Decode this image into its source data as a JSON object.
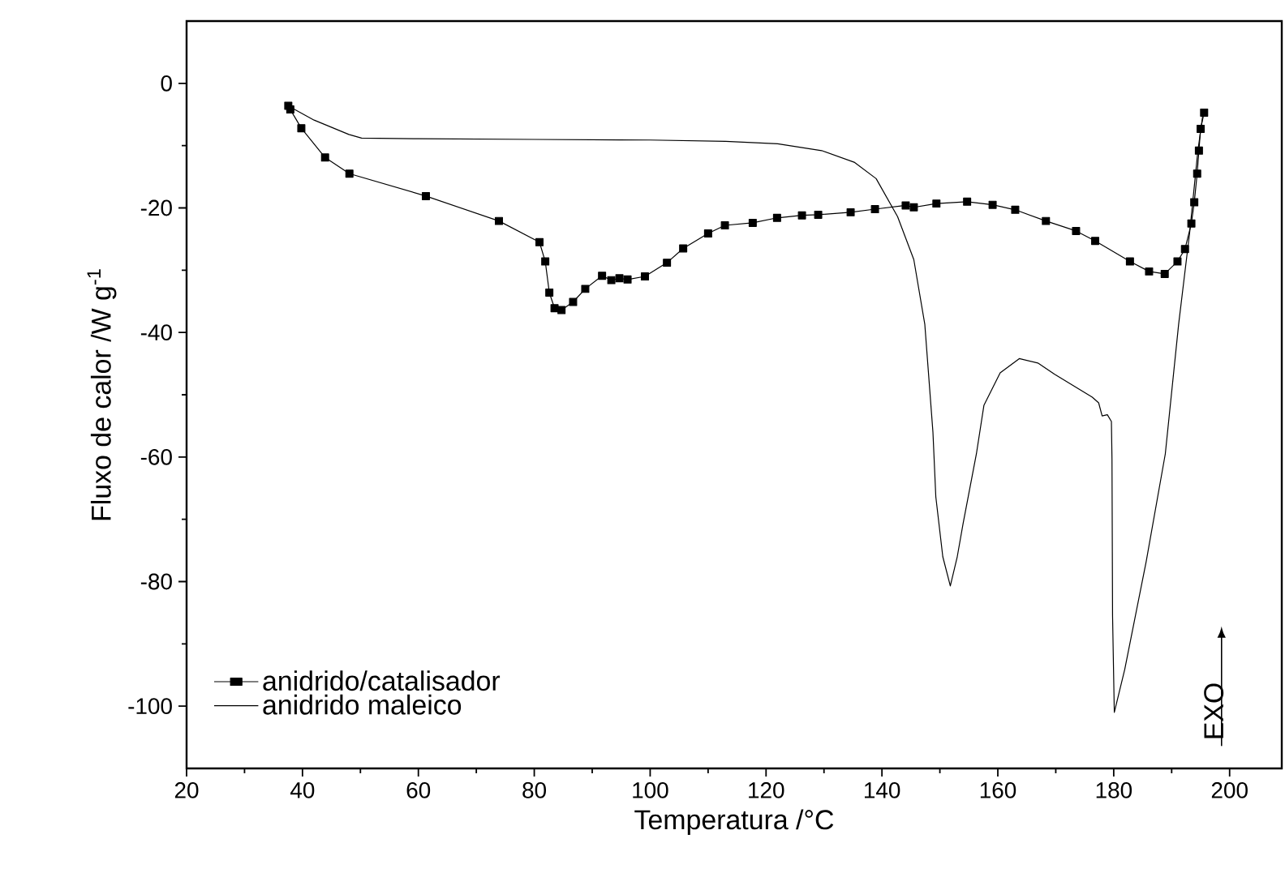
{
  "chart_data": {
    "type": "line",
    "xlabel": "Temperatura /°C",
    "ylabel": "Fluxo de calor /W g$^{-1}$",
    "xlim": [
      20,
      209
    ],
    "ylim": [
      -110,
      10
    ],
    "xticks": [
      20,
      40,
      60,
      80,
      100,
      120,
      140,
      160,
      180,
      200
    ],
    "yticks": [
      -100,
      -80,
      -60,
      -40,
      -20,
      0
    ],
    "legend": "bottom left",
    "annotations": [
      "EXO"
    ],
    "series": [
      {
        "name": "anidrido/catalisador",
        "color": "#000000",
        "marker": "square",
        "x": [
          37.55,
          37.9,
          39.8,
          43.9,
          48.1,
          61.3,
          73.9,
          80.9,
          81.9,
          82.6,
          83.5,
          84.7,
          86.7,
          88.8,
          91.7,
          93.3,
          94.7,
          96.1,
          99.1,
          102.9,
          105.7,
          110.0,
          112.9,
          117.7,
          121.9,
          126.2,
          129.0,
          134.6,
          138.8,
          144.1,
          145.5,
          149.4,
          154.7,
          159.1,
          163.0,
          168.3,
          173.5,
          176.8,
          182.8,
          186.1,
          188.8,
          191.0,
          192.3,
          193.4,
          193.9,
          194.4,
          194.7,
          195.0,
          195.3,
          195.6
        ],
        "values": [
          -3.6,
          -4.2,
          -7.2,
          -11.9,
          -14.5,
          -18.1,
          -22.1,
          -25.5,
          -28.6,
          -33.6,
          -36.1,
          -36.4,
          -35.1,
          -33.0,
          -30.9,
          -31.6,
          -31.3,
          -31.5,
          -31.0,
          -28.8,
          -26.5,
          -24.1,
          -22.8,
          -22.4,
          -21.6,
          -21.2,
          -21.1,
          -20.7,
          -20.2,
          -19.6,
          -19.9,
          -19.3,
          -19.0,
          -19.5,
          -20.3,
          -22.1,
          -23.7,
          -25.3,
          -28.6,
          -30.2,
          -30.6,
          -28.6,
          -26.6,
          -22.5,
          -19.1,
          -14.5,
          -10.8,
          -7.3,
          null,
          -4.7
        ]
      },
      {
        "name": "anidrido maleico",
        "color": "#000000",
        "marker": "none",
        "x": [
          37.5,
          42,
          48,
          50.2,
          60,
          80,
          100,
          113,
          122,
          129.6,
          135.3,
          139.0,
          142.7,
          145.5,
          147.4,
          148.8,
          149.3,
          150.5,
          151.8,
          153.0,
          154.0,
          156.3,
          157.6,
          160.4,
          163.7,
          166.9,
          169.8,
          176.3,
          177.4,
          178.0,
          178.9,
          179.6,
          179.7,
          179.8,
          180.1,
          181.9,
          185.6,
          188.9,
          191.2,
          193.1,
          194.5,
          195.4
        ],
        "values": [
          -3.6,
          -5.9,
          -8.2,
          -8.8,
          -8.9,
          -9.0,
          -9.1,
          -9.3,
          -9.7,
          -10.8,
          -12.7,
          -15.3,
          -21.4,
          -28.3,
          -38.7,
          -56.0,
          -66.4,
          -76.0,
          -80.7,
          -76.0,
          -70.7,
          -59.5,
          -51.7,
          -46.5,
          -44.2,
          -44.9,
          -46.7,
          -50.4,
          -51.3,
          -53.4,
          -53.2,
          -54.3,
          -60.3,
          -85.5,
          -101.0,
          -94.1,
          -76.8,
          -59.5,
          -38.7,
          -24.0,
          -11.0,
          -4.9
        ]
      }
    ]
  }
}
